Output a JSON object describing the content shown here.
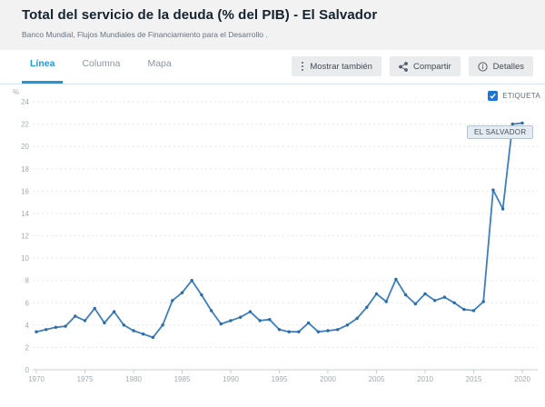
{
  "header": {
    "title": "Total del servicio de la deuda (% del PIB) - El Salvador",
    "subtitle": "Banco Mundial, Flujos Mundiales de Financiamiento para el Desarrollo ."
  },
  "toolbar": {
    "tabs": [
      {
        "label": "Línea",
        "active": true
      },
      {
        "label": "Columna",
        "active": false
      },
      {
        "label": "Mapa",
        "active": false
      }
    ],
    "buttons": [
      {
        "label": "Mostrar también",
        "icon": "kebab-vertical-icon"
      },
      {
        "label": "Compartir",
        "icon": "share-icon"
      },
      {
        "label": "Detalles",
        "icon": "info-icon"
      }
    ]
  },
  "chart": {
    "unit_label": "%",
    "series_label": "EL SALVADOR",
    "legend_checkbox": {
      "label": "ETIQUETA",
      "checked": true
    }
  },
  "colors": {
    "line": "#3d7fbd",
    "dot": "#2c6ba6",
    "tab_active": "#2496d6",
    "checkbox": "#1d75d2",
    "grid": "#e7e7e7",
    "axis": "#cbced1",
    "tick_text": "#a3a9b0"
  },
  "chart_data": {
    "type": "line",
    "title": "Total del servicio de la deuda (% del PIB) - El Salvador",
    "source": "Banco Mundial, Flujos Mundiales de Financiamiento para el Desarrollo",
    "series_name": "EL SALVADOR",
    "x_range": [
      1970,
      2020
    ],
    "xticks": [
      1970,
      1975,
      1980,
      1985,
      1990,
      1995,
      2000,
      2005,
      2010,
      2015,
      2020
    ],
    "ylim": [
      0,
      24
    ],
    "ytick_step": 2,
    "ylabel": "%",
    "grid": "dashed-horizontal",
    "values": [
      3.4,
      3.6,
      3.8,
      3.9,
      4.8,
      4.4,
      5.5,
      4.2,
      5.2,
      4.0,
      3.5,
      3.2,
      2.9,
      4.0,
      6.2,
      6.9,
      8.0,
      6.7,
      5.3,
      4.1,
      4.4,
      4.7,
      5.2,
      4.4,
      4.5,
      3.6,
      3.4,
      3.4,
      4.2,
      3.4,
      3.5,
      3.6,
      4.0,
      4.6,
      5.6,
      6.8,
      6.1,
      8.1,
      6.7,
      5.9,
      6.8,
      6.2,
      6.5,
      6.0,
      5.4,
      5.3,
      6.1,
      16.1,
      14.4,
      22.0,
      22.1
    ]
  }
}
